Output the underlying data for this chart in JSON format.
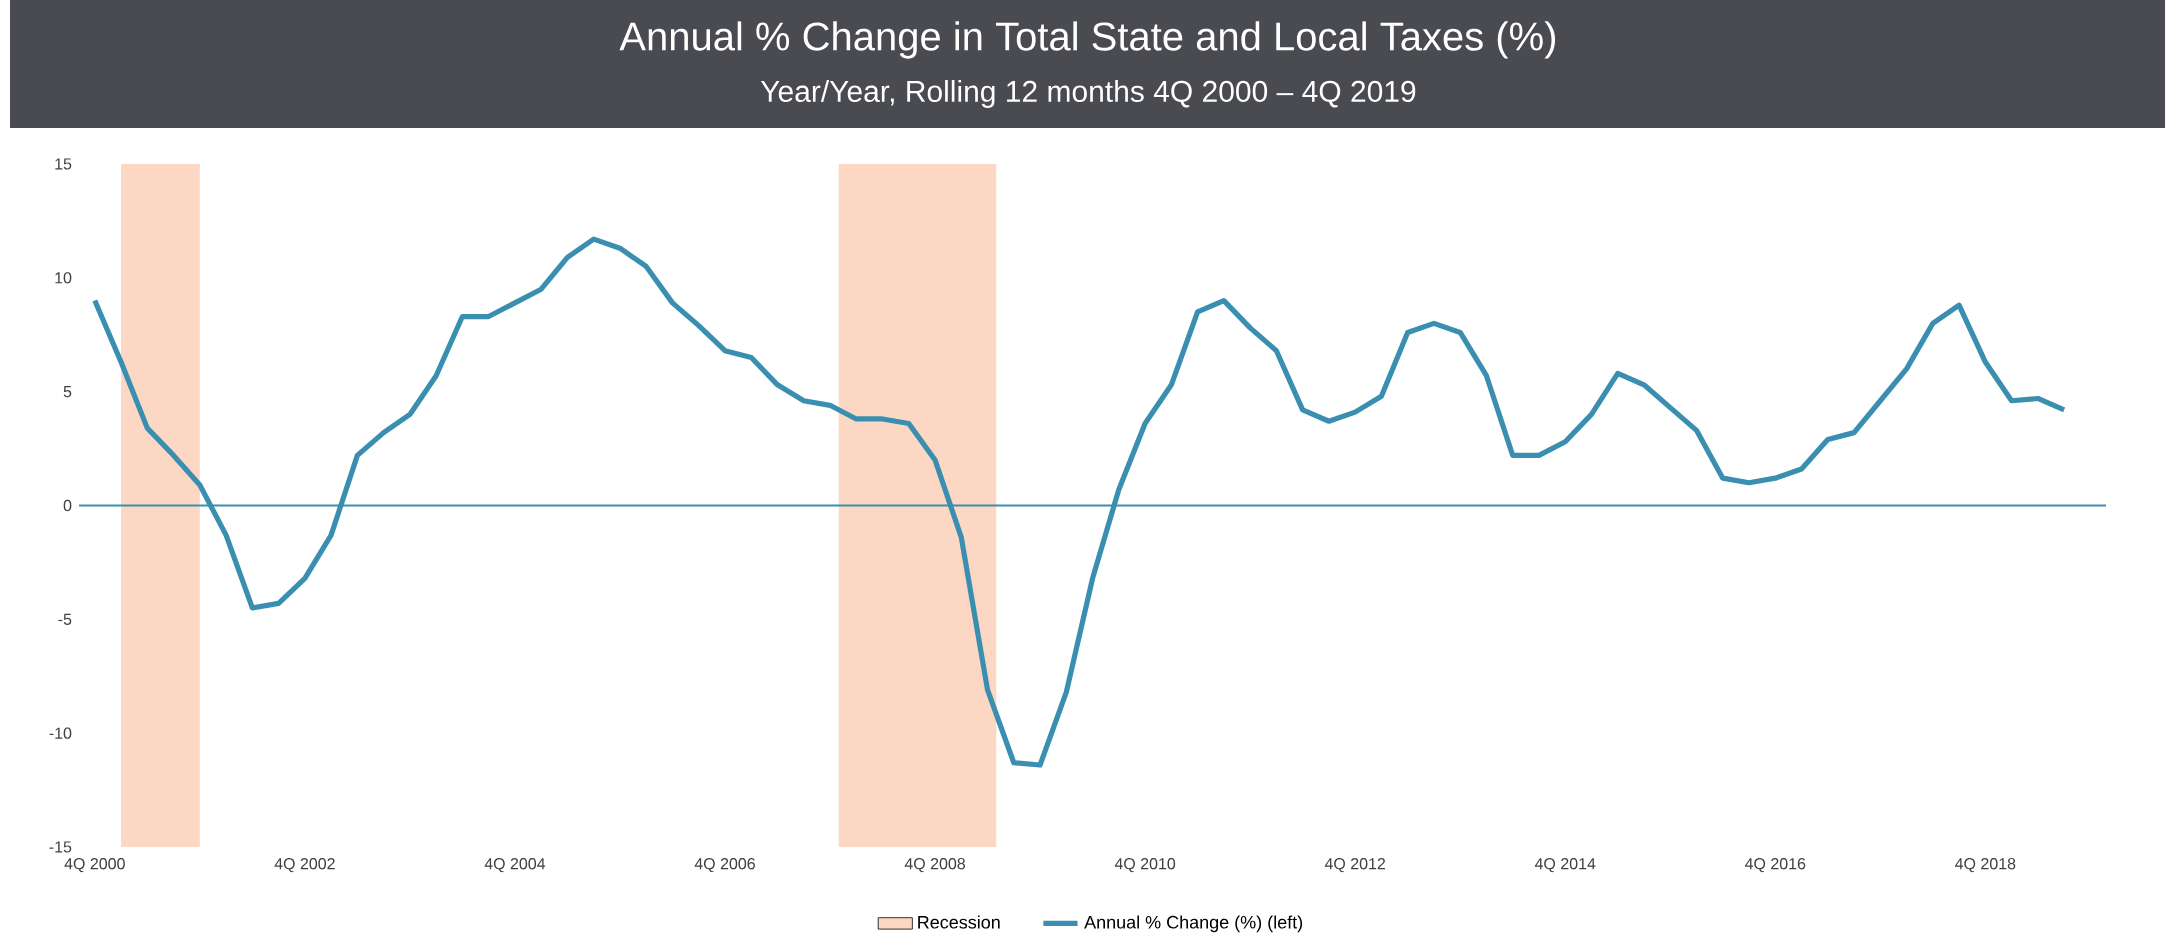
{
  "chart_data": {
    "type": "line",
    "title": "Annual % Change in Total State and Local Taxes (%)",
    "subtitle": "Year/Year, Rolling 12 months 4Q 2000 – 4Q 2019",
    "x": [
      "2000-10",
      "2001-01",
      "2001-04",
      "2001-07",
      "2001-10",
      "2002-01",
      "2002-04",
      "2002-07",
      "2002-10",
      "2003-01",
      "2003-04",
      "2003-07",
      "2003-10",
      "2004-01",
      "2004-04",
      "2004-07",
      "2004-10",
      "2005-01",
      "2005-04",
      "2005-07",
      "2005-10",
      "2006-01",
      "2006-04",
      "2006-07",
      "2006-10",
      "2007-01",
      "2007-04",
      "2007-07",
      "2007-10",
      "2008-01",
      "2008-04",
      "2008-07",
      "2008-10",
      "2009-01",
      "2009-04",
      "2009-07",
      "2009-10",
      "2010-01",
      "2010-04",
      "2010-07",
      "2010-10",
      "2011-01",
      "2011-04",
      "2011-07",
      "2011-10",
      "2012-01",
      "2012-04",
      "2012-07",
      "2012-10",
      "2013-01",
      "2013-04",
      "2013-07",
      "2013-10",
      "2014-01",
      "2014-04",
      "2014-07",
      "2014-10",
      "2015-01",
      "2015-04",
      "2015-07",
      "2015-10",
      "2016-01",
      "2016-04",
      "2016-07",
      "2016-10",
      "2017-01",
      "2017-04",
      "2017-07",
      "2017-10",
      "2018-01",
      "2018-04",
      "2018-07",
      "2018-10",
      "2019-01",
      "2019-04",
      "2019-07"
    ],
    "series": [
      {
        "name": "Annual % Change (%) (left)",
        "color": "#3a8fb0",
        "values": [
          9.0,
          6.3,
          3.4,
          2.2,
          0.9,
          -1.3,
          -4.5,
          -4.3,
          -3.2,
          -1.3,
          2.2,
          3.2,
          4.0,
          5.7,
          8.3,
          8.3,
          8.9,
          9.5,
          10.9,
          11.7,
          11.3,
          10.5,
          8.9,
          7.9,
          6.8,
          6.5,
          5.3,
          4.6,
          4.4,
          3.8,
          3.8,
          3.6,
          2.0,
          -1.4,
          -8.1,
          -11.3,
          -11.4,
          -8.2,
          -3.2,
          0.7,
          3.6,
          5.3,
          8.5,
          9.0,
          7.8,
          6.8,
          4.2,
          3.7,
          4.1,
          4.8,
          7.6,
          8.0,
          7.6,
          5.7,
          2.2,
          2.2,
          2.8,
          4.0,
          5.8,
          5.3,
          4.3,
          3.3,
          1.2,
          1.0,
          1.2,
          1.6,
          2.9,
          3.2,
          4.6,
          6.0,
          8.0,
          8.8,
          6.3,
          4.6,
          4.7,
          4.2
        ]
      }
    ],
    "xlim": [
      "2000-08-07",
      "2019-11-25"
    ],
    "xticks": [
      {
        "value": "2000-10",
        "label": "4Q 2000"
      },
      {
        "value": "2002-10",
        "label": "4Q 2002"
      },
      {
        "value": "2004-10",
        "label": "4Q 2004"
      },
      {
        "value": "2006-10",
        "label": "4Q 2006"
      },
      {
        "value": "2008-10",
        "label": "4Q 2008"
      },
      {
        "value": "2010-10",
        "label": "4Q 2010"
      },
      {
        "value": "2012-10",
        "label": "4Q 2012"
      },
      {
        "value": "2014-10",
        "label": "4Q 2014"
      },
      {
        "value": "2016-10",
        "label": "4Q 2016"
      },
      {
        "value": "2018-10",
        "label": "4Q 2018"
      }
    ],
    "ylim": [
      -15,
      15
    ],
    "yticks": [
      -15,
      -10,
      -5,
      0,
      5,
      10,
      15
    ],
    "bands": [
      {
        "axis": "x",
        "from": "2001-01",
        "to": "2001-10",
        "label": "Recession",
        "color": "#fcd8c4"
      },
      {
        "axis": "x",
        "from": "2007-11",
        "to": "2009-05",
        "color": "#fcd8c4"
      }
    ],
    "ref_lines": [
      {
        "axis": "y",
        "value": 0,
        "color": "#3a8fb0"
      }
    ],
    "grid": false,
    "legend": "bottom"
  }
}
